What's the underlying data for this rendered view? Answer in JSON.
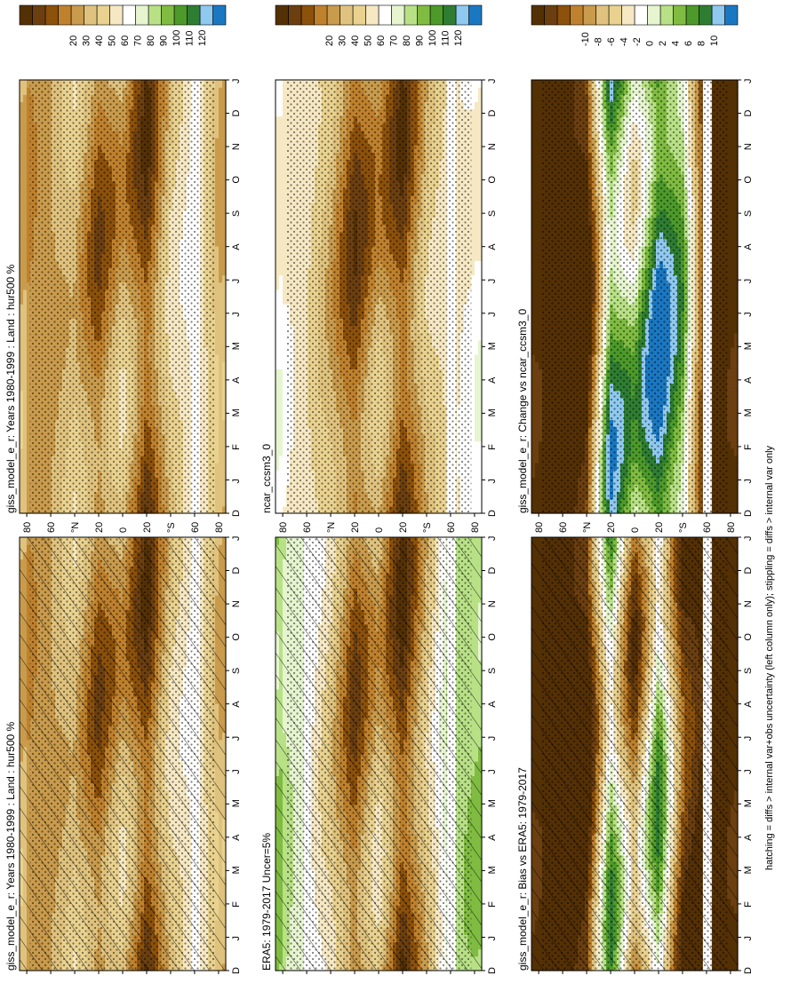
{
  "figure": {
    "footnote": "hatching = diffs > internal var+obs uncertainty (left column only); stippling = diffs > internal var only"
  },
  "chart_data": [
    {
      "type": "heatmap",
      "title": "giss_model_e_r: Years 1980-1999 : Land : hur500 %",
      "x_ticks": [
        "D",
        "J",
        "F",
        "M",
        "A",
        "M",
        "J",
        "J",
        "A",
        "S",
        "O",
        "N",
        "D",
        "J"
      ],
      "y_ticks": [
        "80",
        "60",
        "°N",
        "20",
        "0",
        "20",
        "°S",
        "60",
        "80"
      ],
      "colorbar": {
        "ticks": [
          "120",
          "110",
          "100",
          "90",
          "80",
          "70",
          "60",
          "50",
          "40",
          "30",
          "20"
        ],
        "colors": [
          "#1a78c2",
          "#8fc9f0",
          "#2e7d32",
          "#4d9a2a",
          "#7fbc41",
          "#b8e186",
          "#e6f5d0",
          "#ffffff",
          "#f6e8c3",
          "#e9d28f",
          "#dfc27d",
          "#c99b4c",
          "#bf812d",
          "#8c510a",
          "#6b3f10",
          "#543005"
        ]
      },
      "pattern": "hatch+stipple",
      "missing_band_lat": "60°S",
      "profile_by_lat": [
        [
          80,
          45
        ],
        [
          60,
          50
        ],
        [
          40,
          58
        ],
        [
          20,
          40
        ],
        [
          0,
          55
        ],
        [
          -20,
          32
        ],
        [
          -40,
          62
        ],
        [
          -60,
          72
        ],
        [
          -80,
          52
        ]
      ]
    },
    {
      "type": "heatmap",
      "title": "giss_model_e_r: Years 1980-1999 : Land : hur500 %",
      "x_ticks": [
        "D",
        "J",
        "F",
        "M",
        "A",
        "M",
        "J",
        "J",
        "A",
        "S",
        "O",
        "N",
        "D",
        "J"
      ],
      "y_ticks": [
        "80",
        "60",
        "°N",
        "20",
        "0",
        "20",
        "°S",
        "60",
        "80"
      ],
      "colorbar": {
        "ticks": [
          "120",
          "110",
          "100",
          "90",
          "80",
          "70",
          "60",
          "50",
          "40",
          "30",
          "20"
        ],
        "colors": [
          "#1a78c2",
          "#8fc9f0",
          "#2e7d32",
          "#4d9a2a",
          "#7fbc41",
          "#b8e186",
          "#e6f5d0",
          "#ffffff",
          "#f6e8c3",
          "#e9d28f",
          "#dfc27d",
          "#c99b4c",
          "#bf812d",
          "#8c510a",
          "#6b3f10",
          "#543005"
        ]
      },
      "pattern": "stipple",
      "missing_band_lat": "60°S",
      "profile_by_lat": [
        [
          80,
          45
        ],
        [
          60,
          50
        ],
        [
          40,
          58
        ],
        [
          20,
          40
        ],
        [
          0,
          55
        ],
        [
          -20,
          32
        ],
        [
          -40,
          62
        ],
        [
          -60,
          72
        ],
        [
          -80,
          52
        ]
      ]
    },
    {
      "type": "heatmap",
      "title": "ERA5: 1979-2017 Uncer=5%",
      "x_ticks": [
        "D",
        "J",
        "F",
        "M",
        "A",
        "M",
        "J",
        "J",
        "A",
        "S",
        "O",
        "N",
        "D",
        "J"
      ],
      "y_ticks": [
        "80",
        "60",
        "°N",
        "20",
        "0",
        "20",
        "°S",
        "60",
        "80"
      ],
      "colorbar": {
        "ticks": [
          "120",
          "110",
          "100",
          "90",
          "80",
          "70",
          "60",
          "50",
          "40",
          "30",
          "20"
        ],
        "colors": [
          "#1a78c2",
          "#8fc9f0",
          "#2e7d32",
          "#4d9a2a",
          "#7fbc41",
          "#b8e186",
          "#e6f5d0",
          "#ffffff",
          "#f6e8c3",
          "#e9d28f",
          "#dfc27d",
          "#c99b4c",
          "#bf812d",
          "#8c510a",
          "#6b3f10",
          "#543005"
        ]
      },
      "pattern": "hatch+stipple",
      "missing_band_lat": "60°S",
      "profile_by_lat": [
        [
          80,
          85
        ],
        [
          60,
          75
        ],
        [
          40,
          62
        ],
        [
          20,
          38
        ],
        [
          0,
          58
        ],
        [
          -20,
          30
        ],
        [
          -40,
          58
        ],
        [
          -60,
          85
        ],
        [
          -80,
          88
        ]
      ]
    },
    {
      "type": "heatmap",
      "title": "ncar_ccsm3_0",
      "x_ticks": [
        "D",
        "J",
        "F",
        "M",
        "A",
        "M",
        "J",
        "J",
        "A",
        "S",
        "O",
        "N",
        "D",
        "J"
      ],
      "y_ticks": [
        "80",
        "60",
        "°N",
        "20",
        "0",
        "20",
        "°S",
        "60",
        "80"
      ],
      "colorbar": {
        "ticks": [
          "120",
          "110",
          "100",
          "90",
          "80",
          "70",
          "60",
          "50",
          "40",
          "30",
          "20"
        ],
        "colors": [
          "#1a78c2",
          "#8fc9f0",
          "#2e7d32",
          "#4d9a2a",
          "#7fbc41",
          "#b8e186",
          "#e6f5d0",
          "#ffffff",
          "#f6e8c3",
          "#e9d28f",
          "#dfc27d",
          "#c99b4c",
          "#bf812d",
          "#8c510a",
          "#6b3f10",
          "#543005"
        ]
      },
      "pattern": "stipple",
      "missing_band_lat": "60°S",
      "profile_by_lat": [
        [
          80,
          70
        ],
        [
          60,
          66
        ],
        [
          40,
          55
        ],
        [
          20,
          35
        ],
        [
          0,
          52
        ],
        [
          -20,
          32
        ],
        [
          -40,
          58
        ],
        [
          -60,
          68
        ],
        [
          -80,
          72
        ]
      ]
    },
    {
      "type": "heatmap",
      "title": "giss_model_e_r: Bias vs ERA5: 1979-2017",
      "x_ticks": [
        "D",
        "J",
        "F",
        "M",
        "A",
        "M",
        "J",
        "J",
        "A",
        "S",
        "O",
        "N",
        "D",
        "J"
      ],
      "y_ticks": [
        "80",
        "60",
        "°N",
        "20",
        "0",
        "20",
        "°S",
        "60",
        "80"
      ],
      "colorbar": {
        "ticks": [
          "10",
          "8",
          "6",
          "4",
          "2",
          "0",
          "-2",
          "-4",
          "-6",
          "-8",
          "-10"
        ],
        "colors": [
          "#1a78c2",
          "#8fc9f0",
          "#2e7d32",
          "#4d9a2a",
          "#7fbc41",
          "#b8e186",
          "#e6f5d0",
          "#ffffff",
          "#f6e8c3",
          "#e9d28f",
          "#dfc27d",
          "#c99b4c",
          "#bf812d",
          "#8c510a",
          "#6b3f10",
          "#543005"
        ]
      },
      "pattern": "hatch+stipple",
      "missing_band_lat": "60°S",
      "profile_by_lat": [
        [
          80,
          -10
        ],
        [
          60,
          -10
        ],
        [
          40,
          -10
        ],
        [
          20,
          4
        ],
        [
          0,
          -6
        ],
        [
          -20,
          4
        ],
        [
          -40,
          -8
        ],
        [
          -60,
          -10
        ],
        [
          -80,
          -10
        ]
      ]
    },
    {
      "type": "heatmap",
      "title": "giss_model_e_r: Change vs ncar_ccsm3_0",
      "x_ticks": [
        "D",
        "J",
        "F",
        "M",
        "A",
        "M",
        "J",
        "J",
        "A",
        "S",
        "O",
        "N",
        "D",
        "J"
      ],
      "y_ticks": [
        "80",
        "60",
        "°N",
        "20",
        "0",
        "20",
        "°S",
        "60",
        "80"
      ],
      "colorbar": {
        "ticks": [
          "10",
          "8",
          "6",
          "4",
          "2",
          "0",
          "-2",
          "-4",
          "-6",
          "-8",
          "-10"
        ],
        "colors": [
          "#1a78c2",
          "#8fc9f0",
          "#2e7d32",
          "#4d9a2a",
          "#7fbc41",
          "#b8e186",
          "#e6f5d0",
          "#ffffff",
          "#f6e8c3",
          "#e9d28f",
          "#dfc27d",
          "#c99b4c",
          "#bf812d",
          "#8c510a",
          "#6b3f10",
          "#543005"
        ]
      },
      "pattern": "stipple",
      "missing_band_lat": "60°S",
      "profile_by_lat": [
        [
          80,
          -10
        ],
        [
          60,
          -10
        ],
        [
          40,
          -10
        ],
        [
          20,
          6
        ],
        [
          0,
          2
        ],
        [
          -20,
          8
        ],
        [
          -40,
          4
        ],
        [
          -60,
          -10
        ],
        [
          -80,
          -10
        ]
      ]
    }
  ]
}
